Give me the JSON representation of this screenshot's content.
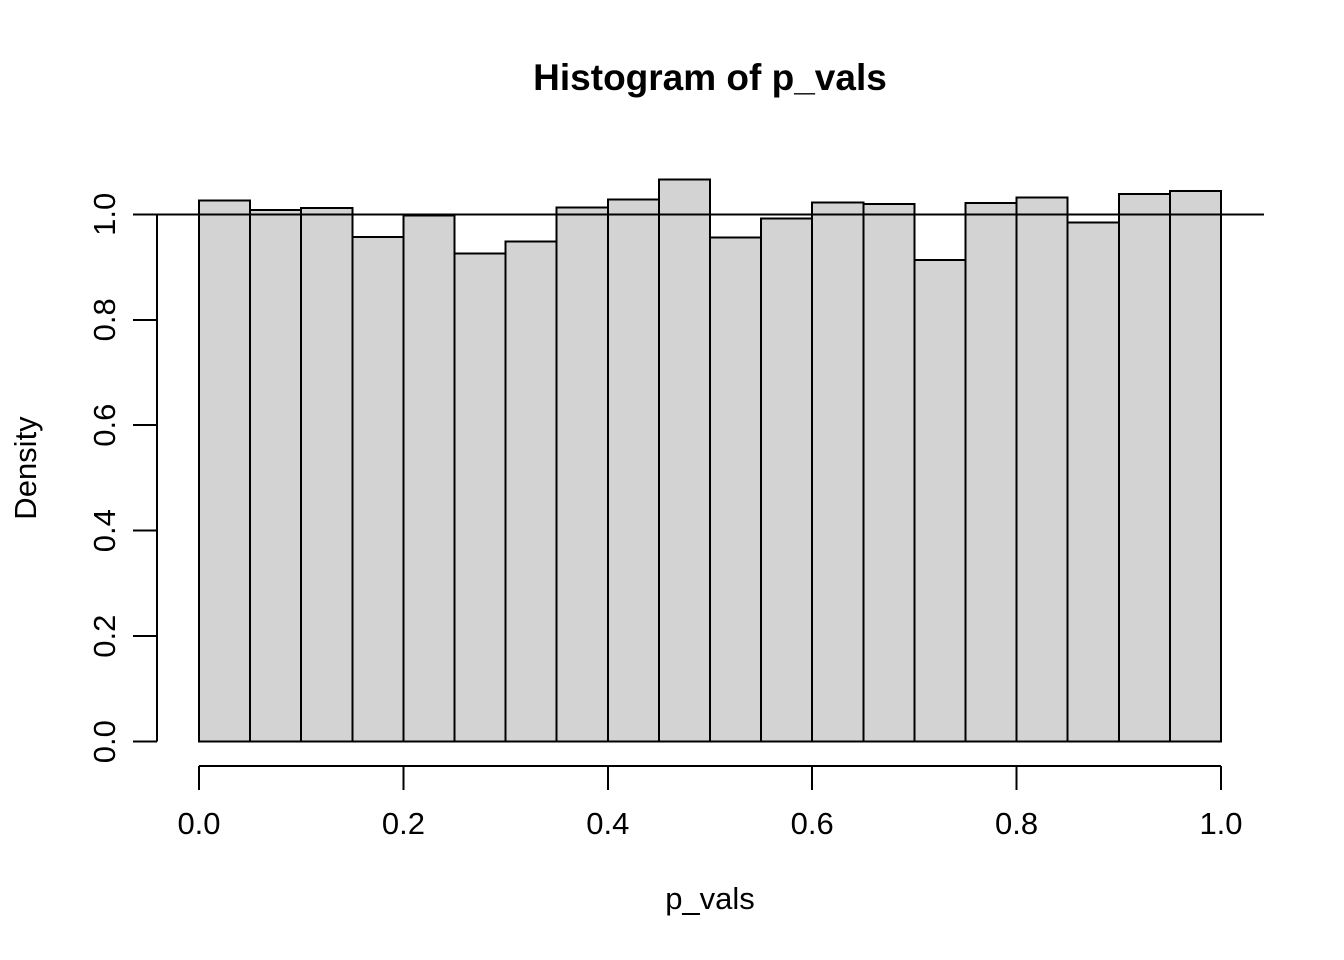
{
  "figure": {
    "title": "Histogram of p_vals",
    "xlabel": "p_vals",
    "ylabel": "Density"
  },
  "chart_data": {
    "type": "bar",
    "subtype": "histogram",
    "title": "Histogram of p_vals",
    "xlabel": "p_vals",
    "ylabel": "Density",
    "xlim": [
      0.0,
      1.0
    ],
    "ylim": [
      0.0,
      1.0
    ],
    "grid": false,
    "legend": false,
    "bin_width": 0.05,
    "bin_edges": [
      0.0,
      0.05,
      0.1,
      0.15,
      0.2,
      0.25,
      0.3,
      0.35,
      0.4,
      0.45,
      0.5,
      0.55,
      0.6,
      0.65,
      0.7,
      0.75,
      0.8,
      0.85,
      0.9,
      0.95,
      1.0
    ],
    "densities": [
      1.026,
      1.008,
      1.012,
      0.957,
      0.998,
      0.926,
      0.948,
      1.013,
      1.028,
      1.066,
      0.956,
      0.992,
      1.022,
      1.019,
      0.913,
      1.021,
      1.032,
      0.984,
      1.038,
      1.044
    ],
    "x_tick_labels": [
      "0.0",
      "0.2",
      "0.4",
      "0.6",
      "0.8",
      "1.0"
    ],
    "y_tick_labels": [
      "0.0",
      "0.2",
      "0.4",
      "0.6",
      "0.8",
      "1.0"
    ],
    "reference_line_y": 1.0,
    "bar_fill": "#d3d3d3",
    "bar_stroke": "#000000",
    "axis_color": "#000000",
    "background": "#ffffff"
  }
}
